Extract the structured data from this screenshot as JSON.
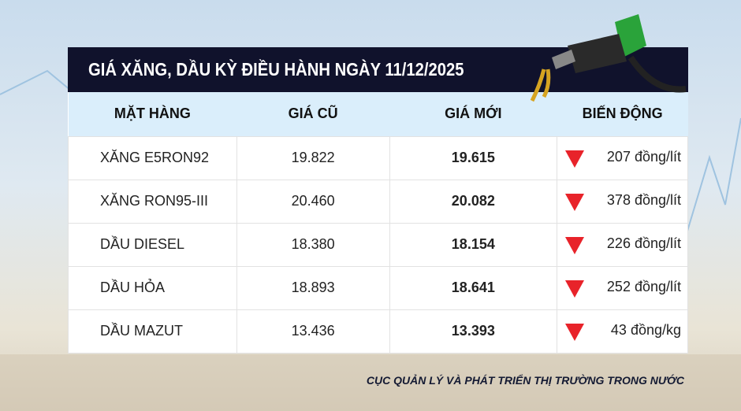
{
  "title": "GIÁ XĂNG, DẦU KỲ ĐIỀU HÀNH NGÀY 11/12/2025",
  "columns": [
    "MẶT HÀNG",
    "GIÁ CŨ",
    "GIÁ MỚI",
    "BIẾN ĐỘNG"
  ],
  "rows": [
    {
      "name": "XĂNG E5RON92",
      "old": "19.822",
      "new": "19.615",
      "change": "207 đồng/lít",
      "direction": "down"
    },
    {
      "name": "XĂNG RON95-III",
      "old": "20.460",
      "new": "20.082",
      "change": "378 đồng/lít",
      "direction": "down"
    },
    {
      "name": "DẦU DIESEL",
      "old": "18.380",
      "new": "18.154",
      "change": "226 đồng/lít",
      "direction": "down"
    },
    {
      "name": "DẦU HỎA",
      "old": "18.893",
      "new": "18.641",
      "change": "252 đồng/lít",
      "direction": "down"
    },
    {
      "name": "DẦU MAZUT",
      "old": "13.436",
      "new": "13.393",
      "change": "43 đồng/kg",
      "direction": "down"
    }
  ],
  "source": "CỤC QUẢN LÝ VÀ PHÁT TRIỂN THỊ TRƯỜNG TRONG NƯỚC",
  "colors": {
    "header": "#10122c",
    "column_header": "#daeefb",
    "down": "#e8232a"
  }
}
